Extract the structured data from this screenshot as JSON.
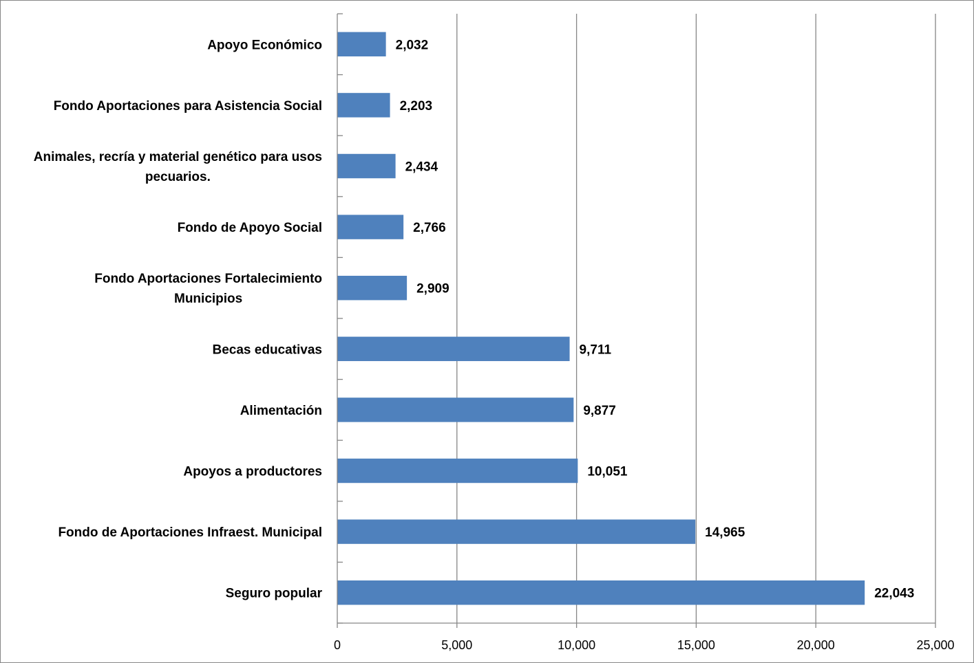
{
  "chart_data": {
    "type": "bar",
    "orientation": "horizontal",
    "categories": [
      "Apoyo Económico",
      "Fondo Aportaciones para Asistencia Social",
      "Animales, recría y material genético para usos pecuarios.",
      "Fondo de Apoyo Social",
      "Fondo Aportaciones Fortalecimiento Municipios",
      "Becas educativas",
      "Alimentación",
      "Apoyos a productores",
      "Fondo de Aportaciones Infraest. Municipal",
      "Seguro popular"
    ],
    "category_lines": [
      [
        "Apoyo Económico"
      ],
      [
        "Fondo Aportaciones para Asistencia Social"
      ],
      [
        "Animales, recría y material genético para usos",
        "pecuarios."
      ],
      [
        "Fondo de Apoyo Social"
      ],
      [
        "Fondo Aportaciones Fortalecimiento",
        "Municipios"
      ],
      [
        "Becas educativas"
      ],
      [
        "Alimentación"
      ],
      [
        "Apoyos a productores"
      ],
      [
        "Fondo de Aportaciones Infraest. Municipal"
      ],
      [
        "Seguro popular"
      ]
    ],
    "values": [
      2032,
      2203,
      2434,
      2766,
      2909,
      9711,
      9877,
      10051,
      14965,
      22043
    ],
    "data_labels": [
      "2,032",
      "2,203",
      "2,434",
      "2,766",
      "2,909",
      "9,711",
      "9,877",
      "10,051",
      "14,965",
      "22,043"
    ],
    "xlim": [
      0,
      25000
    ],
    "x_ticks": [
      0,
      5000,
      10000,
      15000,
      20000,
      25000
    ],
    "x_tick_labels": [
      "0",
      "5,000",
      "10,000",
      "15,000",
      "20,000",
      "25,000"
    ],
    "title": "",
    "xlabel": "",
    "ylabel": "",
    "grid": "vertical",
    "legend": "none",
    "colors": {
      "bar": "#4F81BD",
      "grid": "#868686",
      "axis": "#868686",
      "border": "#868686"
    }
  }
}
